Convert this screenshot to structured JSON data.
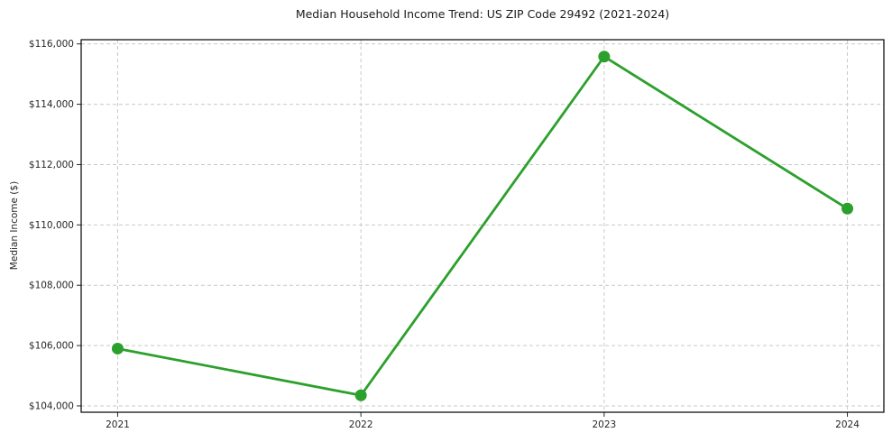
{
  "chart_data": {
    "type": "line",
    "title": "Median Household Income Trend: US ZIP Code 29492 (2021-2024)",
    "xlabel": "",
    "ylabel": "Median Income ($)",
    "categories": [
      "2021",
      "2022",
      "2023",
      "2024"
    ],
    "series": [
      {
        "name": "Median Household Income",
        "values": [
          105900,
          104350,
          115580,
          110540
        ]
      }
    ],
    "y_ticks": [
      104000,
      106000,
      108000,
      110000,
      112000,
      114000,
      116000
    ],
    "y_tick_labels": [
      "$104,000",
      "$106,000",
      "$108,000",
      "$110,000",
      "$112,000",
      "$114,000",
      "$116,000"
    ],
    "ylim": [
      103790,
      116140
    ],
    "grid": true,
    "grid_style": "dashed",
    "legend": false,
    "line_color": "#2ca02c",
    "marker": "circle",
    "grid_color": "#c9c9c9",
    "spine_color": "#000000",
    "tick_color": "#262626",
    "background": "#ffffff"
  }
}
